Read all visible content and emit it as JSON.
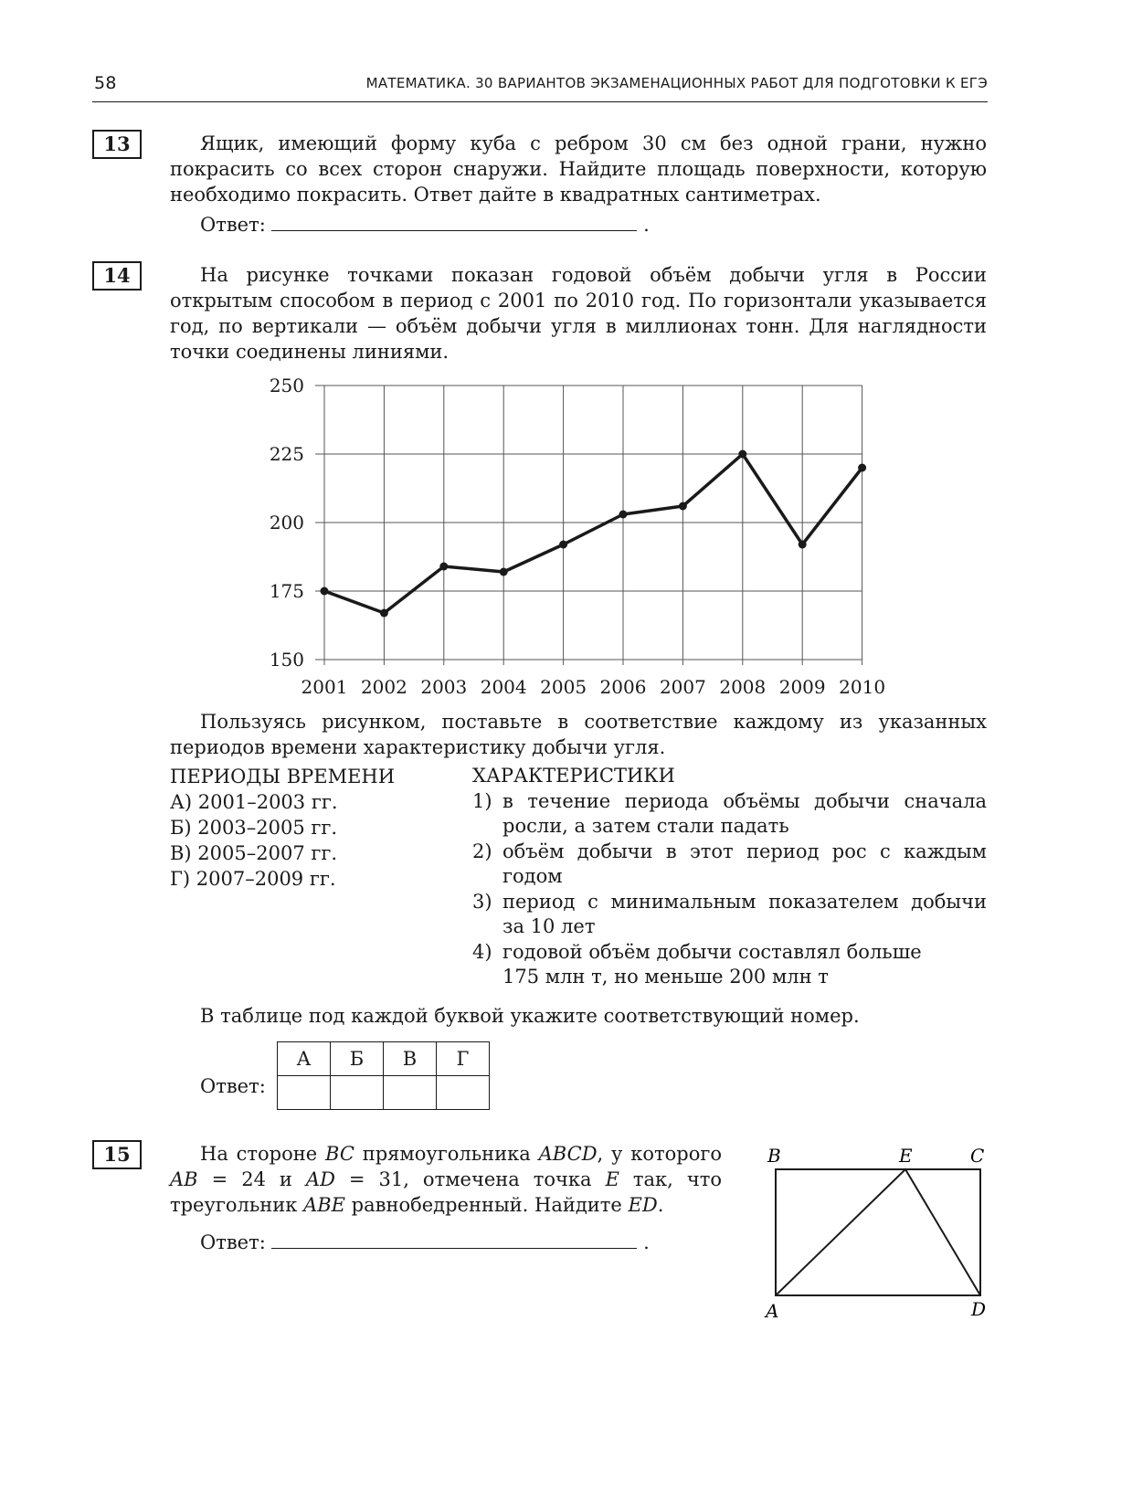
{
  "header": {
    "page_number": "58",
    "title": "МАТЕМАТИКА. 30 ВАРИАНТОВ ЭКЗАМЕНАЦИОННЫХ РАБОТ ДЛЯ ПОДГОТОВКИ К ЕГЭ"
  },
  "answer_label": "Ответ:",
  "task13": {
    "number": "13",
    "text": "Ящик, имеющий форму куба с ребром 30 см без одной грани, нужно покрасить со всех сторон снаружи. Найдите площадь поверхности, которую необходимо покрасить. Ответ дайте в квадратных сантиметрах."
  },
  "task14": {
    "number": "14",
    "text": "На рисунке точками показан годовой объём добычи угля в России открытым способом в период с 2001 по 2010 год. По горизонтали указывается год, по вертикали — объём добычи угля в миллионах тонн. Для наглядности точки соединены линиями.",
    "instruction": "Пользуясь рисунком, поставьте в соответствие каждому из указанных периодов времени характеристику добычи угля.",
    "periods_header": "ПЕРИОДЫ ВРЕМЕНИ",
    "periods": [
      "А) 2001–2003 гг.",
      "Б) 2003–2005 гг.",
      "В) 2005–2007 гг.",
      "Г) 2007–2009 гг."
    ],
    "chars_header": "ХАРАКТЕРИСТИКИ",
    "chars": [
      {
        "n": "1)",
        "text": "в течение периода объёмы добычи сначала росли, а затем стали падать"
      },
      {
        "n": "2)",
        "text": "объём добычи в этот период рос с каждым годом"
      },
      {
        "n": "3)",
        "text": "период с минимальным показателем добычи за 10 лет"
      },
      {
        "n": "4)",
        "text": "годовой объём добычи составлял больше 175 млн т, но меньше 200 млн т"
      }
    ],
    "table_instruction": "В таблице под каждой буквой укажите соответствующий номер.",
    "table_headers": [
      "А",
      "Б",
      "В",
      "Г"
    ]
  },
  "chart_data": {
    "type": "line",
    "x": [
      "2001",
      "2002",
      "2003",
      "2004",
      "2005",
      "2006",
      "2007",
      "2008",
      "2009",
      "2010"
    ],
    "values": [
      175,
      167,
      184,
      182,
      192,
      203,
      206,
      225,
      192,
      220
    ],
    "yticks": [
      "150",
      "175",
      "200",
      "225",
      "250"
    ],
    "ylim": [
      150,
      250
    ],
    "grid": true,
    "markers": true,
    "line_color": "#1a1a1a"
  },
  "task15": {
    "number": "15",
    "text_html_parts": [
      "На стороне ",
      "BC",
      " прямоугольника ",
      "ABCD",
      ", у которого ",
      "AB",
      " = 24 и ",
      "AD",
      " = 31, отмечена точка ",
      "E",
      " так, что треугольник ",
      "ABE",
      " равнобедренный. Найдите ",
      "ED",
      "."
    ],
    "labels": {
      "A": "A",
      "B": "B",
      "C": "C",
      "D": "D",
      "E": "E"
    }
  }
}
